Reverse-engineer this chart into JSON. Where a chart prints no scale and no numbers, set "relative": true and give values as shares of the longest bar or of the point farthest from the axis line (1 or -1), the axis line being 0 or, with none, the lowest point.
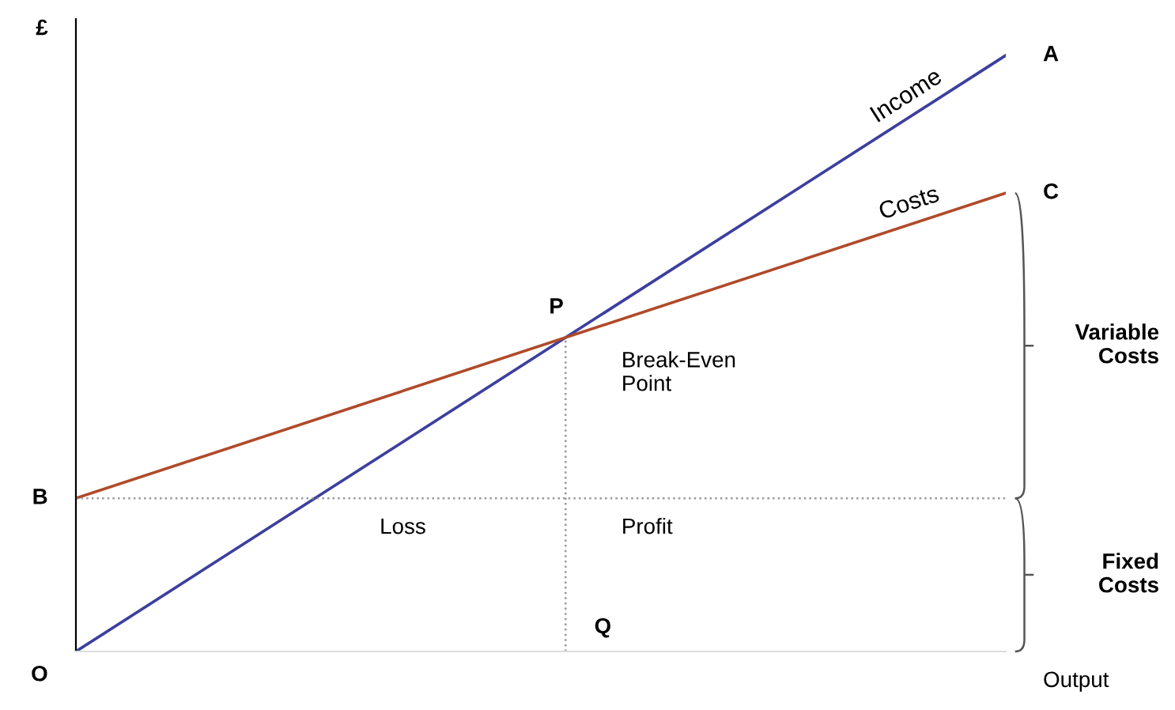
{
  "chart_data": {
    "type": "line",
    "relative": true,
    "xlabel": "Output",
    "ylabel": "£",
    "categories": [
      null,
      null
    ],
    "marker": "none",
    "line_style": "solid",
    "series": [
      {
        "name": "Income",
        "color": "#3c3f9e",
        "values": [
          0,
          1
        ]
      },
      {
        "name": "Costs",
        "color": "#b04a2a",
        "values": [
          0.257,
          0.769
        ]
      }
    ],
    "ref_lines": [
      {
        "axis": "y",
        "value": 0.257,
        "label": "B",
        "color": "#999999",
        "line_style": "dotted"
      }
    ],
    "annotations": [
      "O",
      "P",
      "Q",
      "A",
      "C",
      "Break-Even\nPoint",
      "Loss",
      "Profit",
      "Variable\nCosts",
      "Fixed\nCosts"
    ]
  }
}
